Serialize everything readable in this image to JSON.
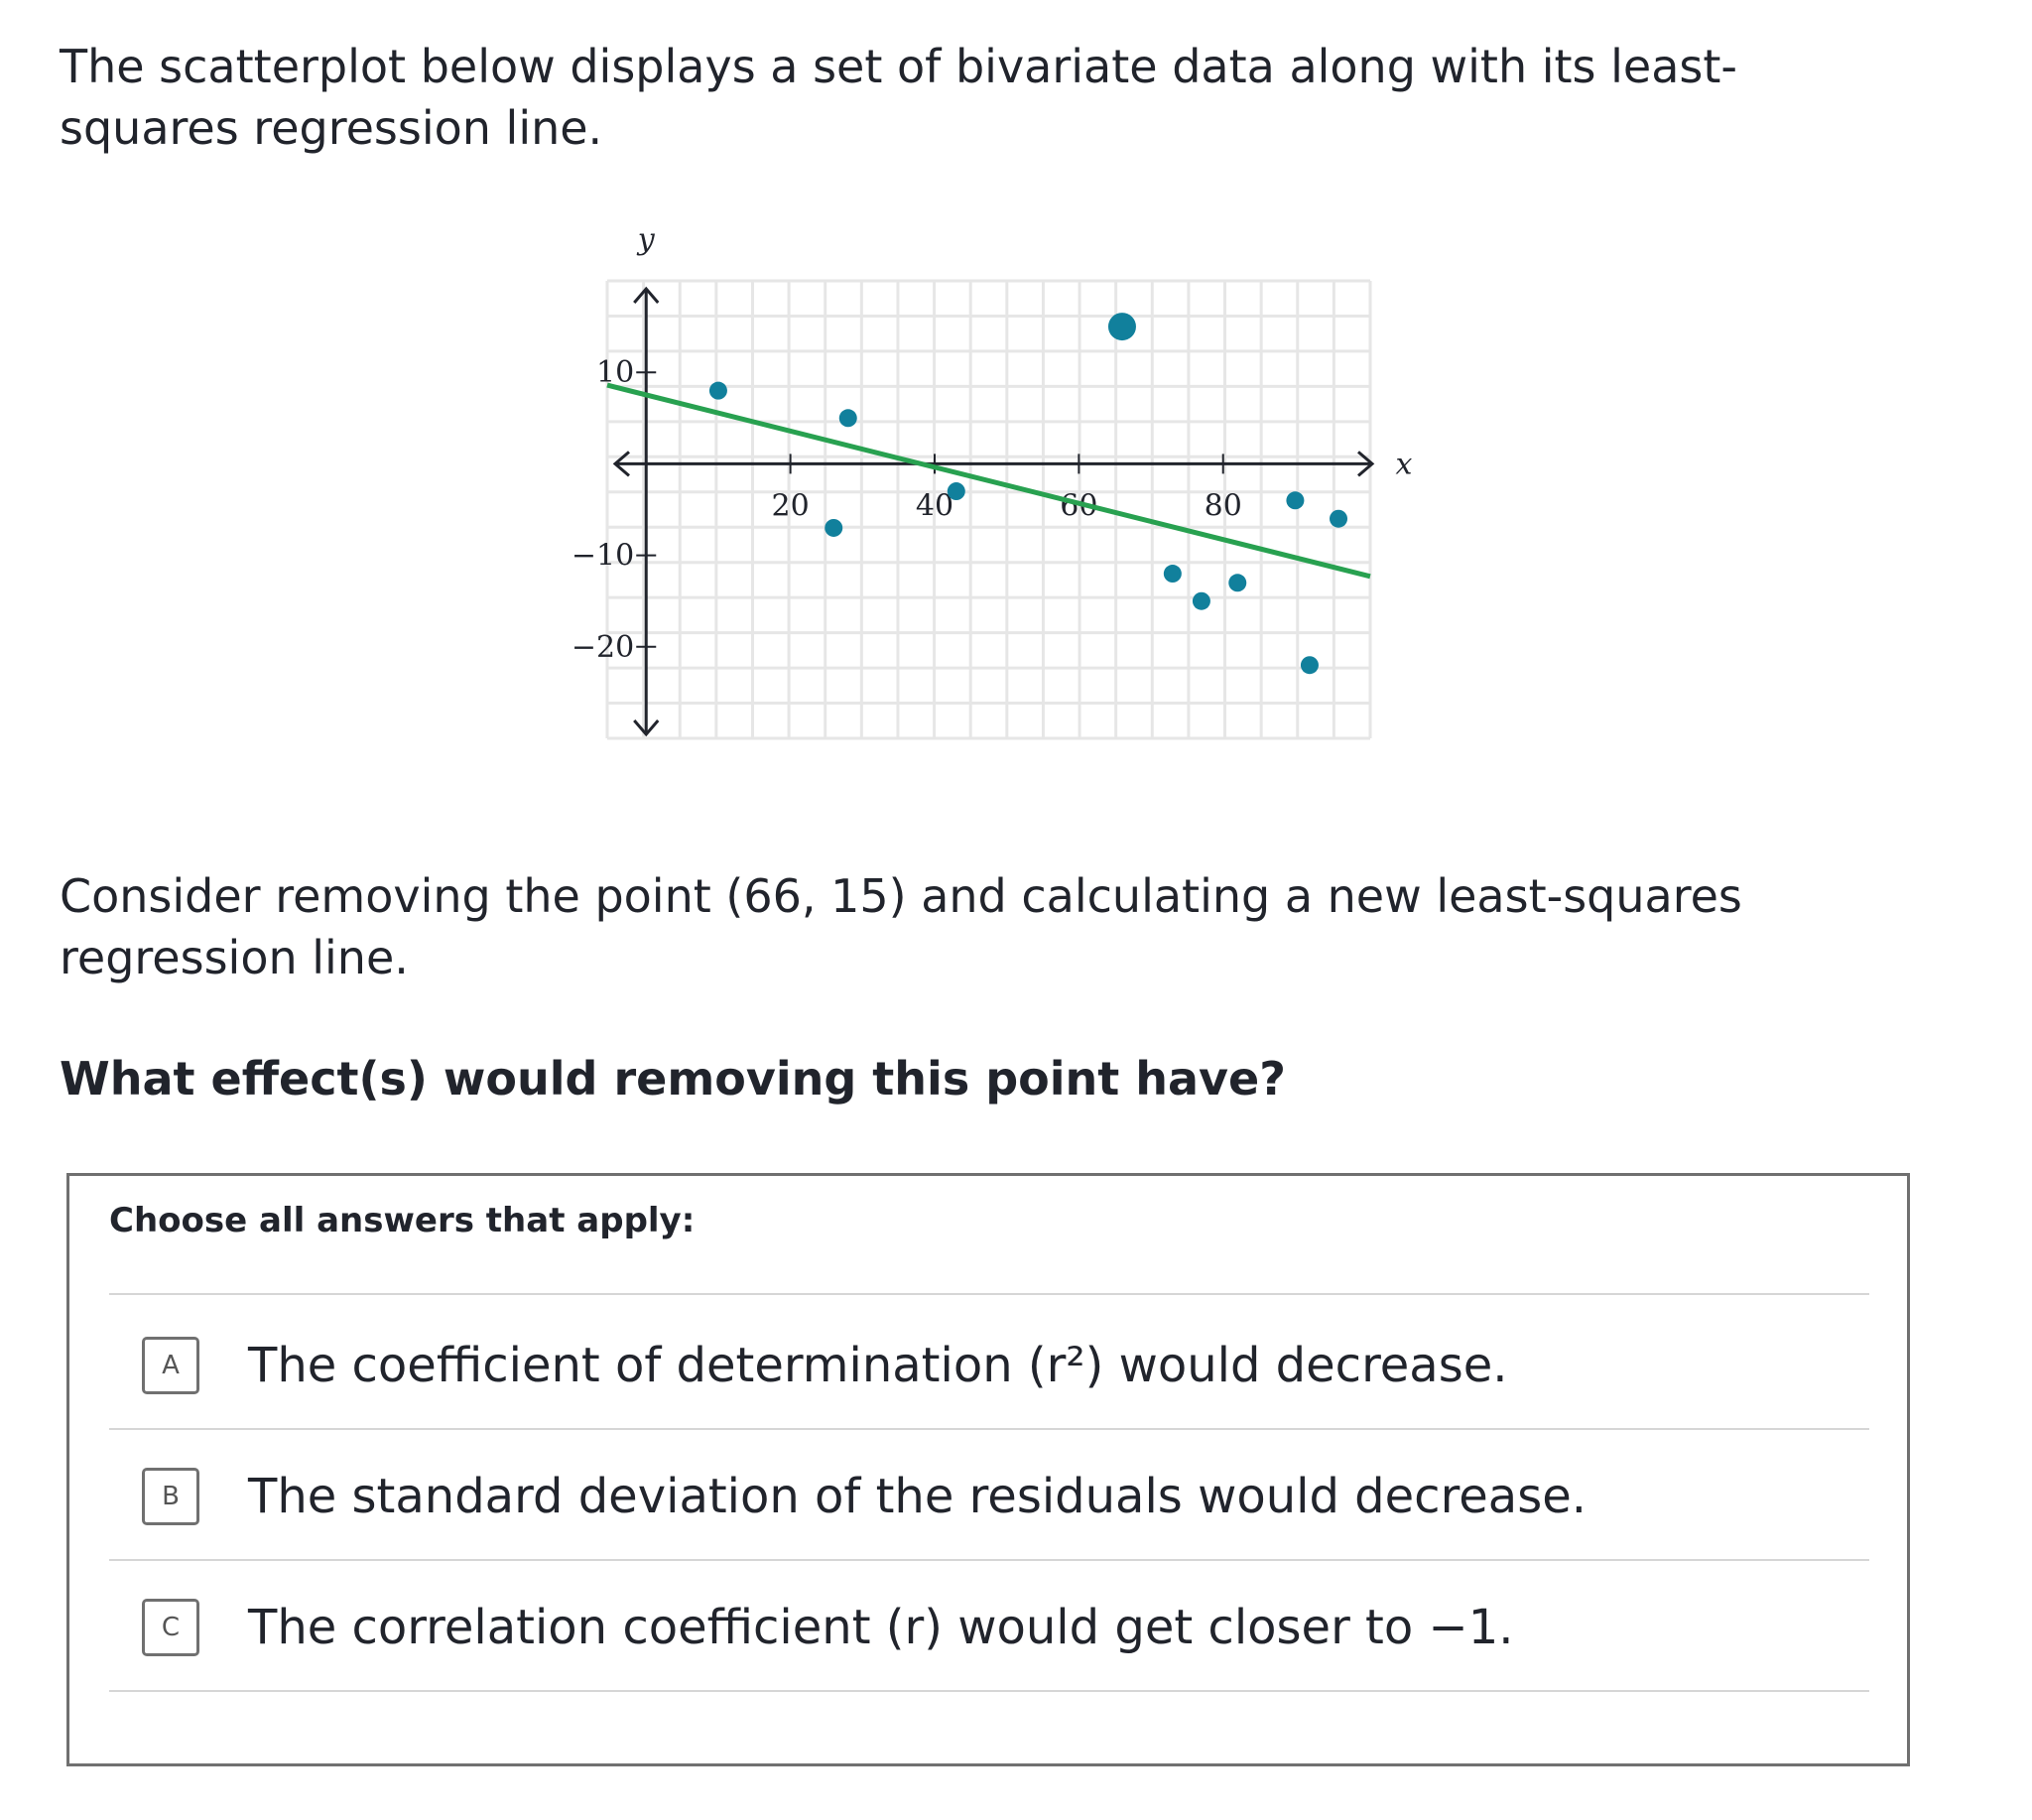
{
  "intro": "The scatterplot below displays a set of bivariate data along with its least-squares regression line.",
  "chart_data": {
    "type": "scatter",
    "x_label": "x",
    "y_label": "y",
    "xlim": [
      -5.4,
      100.4
    ],
    "ylim": [
      -30,
      20
    ],
    "xticks": [
      20,
      40,
      60,
      80
    ],
    "yticks": [
      {
        "value": -20,
        "label": "−20"
      },
      {
        "value": -10,
        "label": "−10"
      },
      10
    ],
    "series": [
      {
        "color": "#11809c",
        "x": [
          10,
          26,
          28,
          43,
          73,
          77,
          82,
          90,
          92,
          96
        ],
        "y": [
          8,
          -7,
          5,
          -3,
          -12,
          -15,
          -13,
          -4,
          -22,
          -6
        ]
      },
      {
        "color": "#11809c",
        "x": [
          66
        ],
        "y": [
          15
        ]
      }
    ],
    "line": {
      "color": "#28a150",
      "x": [
        -5.4,
        100.4
      ],
      "y": [
        8.6,
        -12.3
      ]
    }
  },
  "consider": "Consider removing the point (66, 15) and calculating a new least-squares regression line.",
  "question": "What effect(s) would removing this point have?",
  "choices": {
    "instruction": "Choose all answers that apply:",
    "options": [
      {
        "letter": "A",
        "text": "The coefficient of determination (r²) would decrease."
      },
      {
        "letter": "B",
        "text": "The standard deviation of the residuals would decrease."
      },
      {
        "letter": "C",
        "text": "The correlation coefficient (r) would get closer to −1."
      }
    ]
  }
}
